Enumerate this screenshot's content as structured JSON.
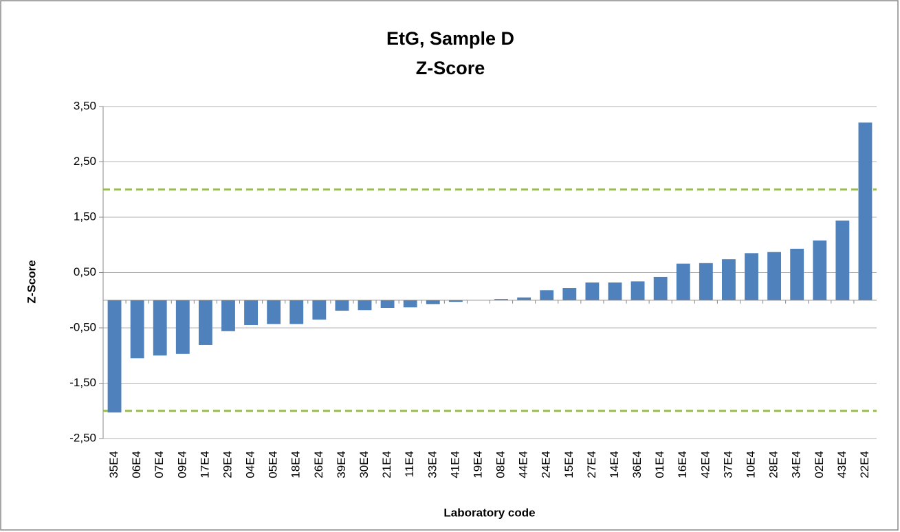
{
  "chart_data": {
    "type": "bar",
    "title": "EtG, Sample D",
    "subtitle": "Z-Score",
    "x_label": "Laboratory code",
    "y_label": "Z-Score",
    "categories": [
      "35E4",
      "06E4",
      "07E4",
      "09E4",
      "17E4",
      "29E4",
      "04E4",
      "05E4",
      "18E4",
      "26E4",
      "39E4",
      "30E4",
      "21E4",
      "11E4",
      "33E4",
      "41E4",
      "19E4",
      "08E4",
      "44E4",
      "24E4",
      "15E4",
      "27E4",
      "14E4",
      "36E4",
      "01E4",
      "16E4",
      "42E4",
      "37E4",
      "10E4",
      "28E4",
      "34E4",
      "02E4",
      "43E4",
      "22E4"
    ],
    "values": [
      -2.03,
      -1.05,
      -1.0,
      -0.97,
      -0.81,
      -0.56,
      -0.45,
      -0.43,
      -0.43,
      -0.35,
      -0.19,
      -0.18,
      -0.14,
      -0.13,
      -0.07,
      -0.03,
      0,
      0.02,
      0.05,
      0.18,
      0.22,
      0.32,
      0.32,
      0.34,
      0.42,
      0.66,
      0.67,
      0.74,
      0.85,
      0.87,
      0.93,
      1.08,
      1.44,
      3.21
    ],
    "color": "#4f81bd",
    "ylim": [
      -2.5,
      3.5
    ],
    "yticks": [
      {
        "value": -2.5,
        "label": "-2,50"
      },
      {
        "value": -1.5,
        "label": "-1,50"
      },
      {
        "value": -0.5,
        "label": "-0,50"
      },
      {
        "value": 0.5,
        "label": "0,50"
      },
      {
        "value": 1.5,
        "label": "1,50"
      },
      {
        "value": 2.5,
        "label": "2,50"
      },
      {
        "value": 3.5,
        "label": "3,50"
      }
    ],
    "grid": true,
    "reference_lines": [
      2,
      -2
    ],
    "reference_color": "#9bbb59"
  }
}
